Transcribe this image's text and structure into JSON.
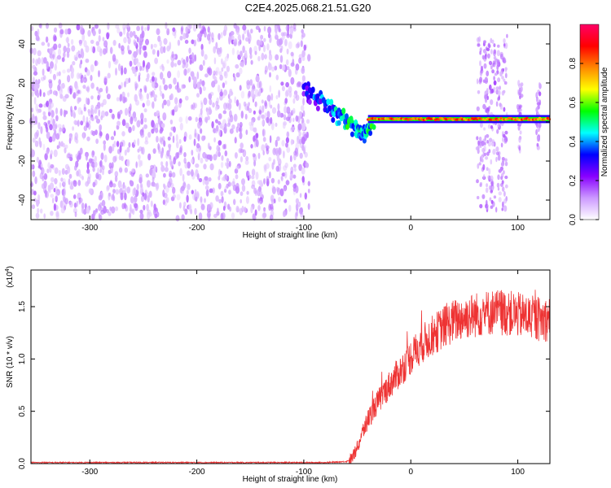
{
  "title": "C2E4.2025.068.21.51.G20",
  "chart_data": [
    {
      "type": "heatmap",
      "xlabel": "Height of straight line (km)",
      "ylabel": "Frequency (Hz)",
      "xlim": [
        -355,
        130
      ],
      "ylim": [
        -50,
        50
      ],
      "x_ticks": [
        -300,
        -200,
        -100,
        0,
        100
      ],
      "y_ticks": [
        -40,
        -20,
        0,
        20,
        40
      ],
      "colorbar": {
        "label": "Normalized spectral amplitude",
        "range": [
          0.0,
          1.0
        ],
        "ticks": [
          "0.0",
          "0.2",
          "0.4",
          "0.6",
          "0.8"
        ],
        "colors": [
          "#ffffff",
          "#cc99ff",
          "#8800ff",
          "#0000ff",
          "#00ffff",
          "#00ff00",
          "#ffff00",
          "#ff8800",
          "#ff0000",
          "#ff0066"
        ]
      },
      "features": {
        "noise_region_x": [
          -355,
          -95
        ],
        "noise_amplitude_range": [
          0.05,
          0.15
        ],
        "descending_track": [
          {
            "x": -100,
            "y": 18,
            "amp": 0.2
          },
          {
            "x": -80,
            "y": 10,
            "amp": 0.3
          },
          {
            "x": -60,
            "y": 2,
            "amp": 0.5
          },
          {
            "x": -45,
            "y": -5,
            "amp": 0.4
          },
          {
            "x": -35,
            "y": 0,
            "amp": 0.5
          }
        ],
        "carrier_line": {
          "y": 1.5,
          "x_start": -40,
          "x_end": 130,
          "amp": 0.85
        },
        "bursts": [
          {
            "x_start": 62,
            "x_end": 90,
            "y_range": [
              -45,
              45
            ],
            "amp": 0.12
          },
          {
            "x_start": 100,
            "x_end": 104,
            "y_range": [
              -15,
              20
            ],
            "amp": 0.12
          },
          {
            "x_start": 117,
            "x_end": 121,
            "y_range": [
              -15,
              20
            ],
            "amp": 0.12
          }
        ]
      }
    },
    {
      "type": "line",
      "xlabel": "Height of straight line (km)",
      "ylabel": "SNR (10 * v/v)",
      "y_multiplier": "(x10",
      "y_multiplier_exp": "4",
      "y_multiplier_close": ")",
      "xlim": [
        -355,
        130
      ],
      "ylim": [
        0,
        1.85
      ],
      "x_ticks": [
        -300,
        -200,
        -100,
        0,
        100
      ],
      "y_ticks": [
        "0.0",
        "0.5",
        "1.0",
        "1.5"
      ],
      "color": "#ee3333",
      "series": [
        {
          "x": [
            -355,
            -300,
            -250,
            -200,
            -150,
            -100,
            -80,
            -60,
            -55,
            -50,
            -45,
            -40,
            -35,
            -30,
            -25,
            -20,
            -15,
            -10,
            -5,
            0,
            5,
            10,
            20,
            30,
            40,
            50,
            60,
            70,
            80,
            90,
            100,
            110,
            120,
            130
          ],
          "y": [
            0.01,
            0.01,
            0.01,
            0.01,
            0.01,
            0.01,
            0.01,
            0.02,
            0.05,
            0.15,
            0.3,
            0.42,
            0.52,
            0.6,
            0.68,
            0.75,
            0.82,
            0.88,
            0.95,
            1.02,
            1.08,
            1.14,
            1.22,
            1.3,
            1.36,
            1.4,
            1.42,
            1.44,
            1.45,
            1.44,
            1.42,
            1.4,
            1.38,
            1.38
          ]
        }
      ]
    }
  ]
}
